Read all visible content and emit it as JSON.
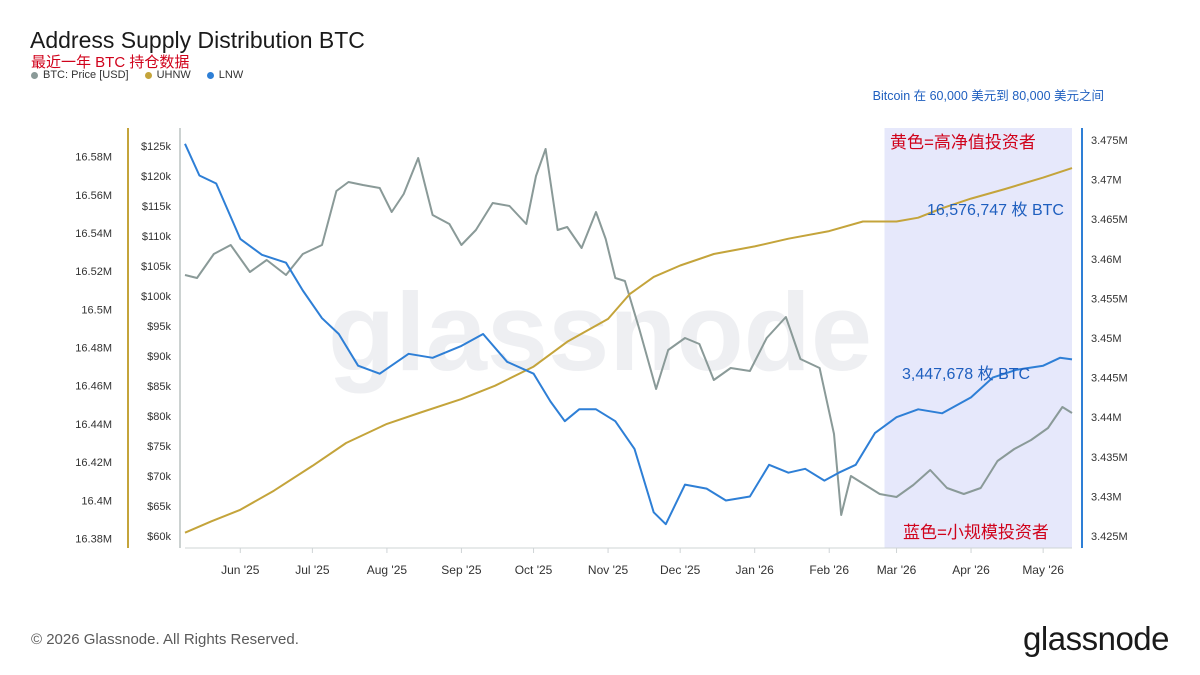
{
  "chart_data": {
    "type": "line",
    "title": "Address Supply Distribution BTC",
    "subtitle": "最近一年 BTC 持仓数据",
    "x_ticks": [
      "Jun '25",
      "Jul '25",
      "Aug '25",
      "Sep '25",
      "Oct '25",
      "Nov '25",
      "Dec '25",
      "Jan '26",
      "Feb '26",
      "Mar '26",
      "Apr '26",
      "May '26"
    ],
    "x_range": [
      "2025-05-09",
      "2026-05-13"
    ],
    "axes": {
      "uhnw": {
        "label": "UHNW",
        "range": [
          16.375,
          16.595
        ],
        "ticks": [
          "16.38M",
          "16.4M",
          "16.42M",
          "16.44M",
          "16.46M",
          "16.48M",
          "16.5M",
          "16.52M",
          "16.54M",
          "16.56M",
          "16.58M"
        ],
        "tick_values": [
          16.38,
          16.4,
          16.42,
          16.44,
          16.46,
          16.48,
          16.5,
          16.52,
          16.54,
          16.56,
          16.58
        ]
      },
      "price": {
        "label": "Price",
        "range": [
          58000,
          128000
        ],
        "ticks": [
          "$60k",
          "$65k",
          "$70k",
          "$75k",
          "$80k",
          "$85k",
          "$90k",
          "$95k",
          "$100k",
          "$105k",
          "$110k",
          "$115k",
          "$120k",
          "$125k"
        ],
        "tick_values": [
          60000,
          65000,
          70000,
          75000,
          80000,
          85000,
          90000,
          95000,
          100000,
          105000,
          110000,
          115000,
          120000,
          125000
        ]
      },
      "lnw": {
        "label": "LNW",
        "range": [
          3.4235,
          3.4765
        ],
        "ticks": [
          "3.425M",
          "3.43M",
          "3.435M",
          "3.44M",
          "3.445M",
          "3.45M",
          "3.455M",
          "3.46M",
          "3.465M",
          "3.47M",
          "3.475M"
        ],
        "tick_values": [
          3.425,
          3.43,
          3.435,
          3.44,
          3.445,
          3.45,
          3.455,
          3.46,
          3.465,
          3.47,
          3.475
        ]
      }
    },
    "series": [
      {
        "name": "BTC: Price [USD]",
        "axis": "price",
        "color": "#8a9a98",
        "points": [
          [
            "2025-05-09",
            103500
          ],
          [
            "2025-05-14",
            103000
          ],
          [
            "2025-05-21",
            107000
          ],
          [
            "2025-05-28",
            108500
          ],
          [
            "2025-06-05",
            104000
          ],
          [
            "2025-06-12",
            106000
          ],
          [
            "2025-06-20",
            103500
          ],
          [
            "2025-06-27",
            107000
          ],
          [
            "2025-07-05",
            108500
          ],
          [
            "2025-07-11",
            117500
          ],
          [
            "2025-07-16",
            119000
          ],
          [
            "2025-07-22",
            118500
          ],
          [
            "2025-07-29",
            118000
          ],
          [
            "2025-08-03",
            114000
          ],
          [
            "2025-08-08",
            117000
          ],
          [
            "2025-08-14",
            123000
          ],
          [
            "2025-08-20",
            113500
          ],
          [
            "2025-08-27",
            112000
          ],
          [
            "2025-09-01",
            108500
          ],
          [
            "2025-09-07",
            111000
          ],
          [
            "2025-09-14",
            115500
          ],
          [
            "2025-09-21",
            115000
          ],
          [
            "2025-09-28",
            112000
          ],
          [
            "2025-10-02",
            120000
          ],
          [
            "2025-10-06",
            124500
          ],
          [
            "2025-10-11",
            111000
          ],
          [
            "2025-10-15",
            111500
          ],
          [
            "2025-10-21",
            108000
          ],
          [
            "2025-10-27",
            114000
          ],
          [
            "2025-10-31",
            109500
          ],
          [
            "2025-11-04",
            103000
          ],
          [
            "2025-11-08",
            102500
          ],
          [
            "2025-11-14",
            94500
          ],
          [
            "2025-11-21",
            84500
          ],
          [
            "2025-11-26",
            91000
          ],
          [
            "2025-12-03",
            93000
          ],
          [
            "2025-12-09",
            92000
          ],
          [
            "2025-12-15",
            86000
          ],
          [
            "2025-12-22",
            88000
          ],
          [
            "2025-12-30",
            87500
          ],
          [
            "2026-01-06",
            93000
          ],
          [
            "2026-01-14",
            96500
          ],
          [
            "2026-01-20",
            89500
          ],
          [
            "2026-01-28",
            88000
          ],
          [
            "2026-02-03",
            77000
          ],
          [
            "2026-02-06",
            63500
          ],
          [
            "2026-02-10",
            70000
          ],
          [
            "2026-02-16",
            68500
          ],
          [
            "2026-02-22",
            67000
          ],
          [
            "2026-03-01",
            66500
          ],
          [
            "2026-03-08",
            68500
          ],
          [
            "2026-03-15",
            71000
          ],
          [
            "2026-03-22",
            68000
          ],
          [
            "2026-03-29",
            67000
          ],
          [
            "2026-04-05",
            68000
          ],
          [
            "2026-04-12",
            72500
          ],
          [
            "2026-04-19",
            74500
          ],
          [
            "2026-04-26",
            76000
          ],
          [
            "2026-05-03",
            78000
          ],
          [
            "2026-05-09",
            81500
          ],
          [
            "2026-05-13",
            80500
          ]
        ]
      },
      {
        "name": "UHNW",
        "axis": "uhnw",
        "color": "#c4a43b",
        "points": [
          [
            "2025-05-09",
            16.383
          ],
          [
            "2025-05-20",
            16.389
          ],
          [
            "2025-06-01",
            16.395
          ],
          [
            "2025-06-15",
            16.405
          ],
          [
            "2025-07-01",
            16.418
          ],
          [
            "2025-07-15",
            16.43
          ],
          [
            "2025-08-01",
            16.44
          ],
          [
            "2025-08-15",
            16.446
          ],
          [
            "2025-09-01",
            16.453
          ],
          [
            "2025-09-15",
            16.46
          ],
          [
            "2025-10-01",
            16.47
          ],
          [
            "2025-10-15",
            16.483
          ],
          [
            "2025-11-01",
            16.495
          ],
          [
            "2025-11-10",
            16.508
          ],
          [
            "2025-11-20",
            16.517
          ],
          [
            "2025-12-01",
            16.523
          ],
          [
            "2025-12-15",
            16.529
          ],
          [
            "2026-01-01",
            16.533
          ],
          [
            "2026-01-15",
            16.537
          ],
          [
            "2026-02-01",
            16.541
          ],
          [
            "2026-02-15",
            16.546
          ],
          [
            "2026-03-01",
            16.546
          ],
          [
            "2026-03-10",
            16.548
          ],
          [
            "2026-03-20",
            16.553
          ],
          [
            "2026-04-01",
            16.558
          ],
          [
            "2026-04-15",
            16.563
          ],
          [
            "2026-05-01",
            16.569
          ],
          [
            "2026-05-13",
            16.574
          ]
        ]
      },
      {
        "name": "LNW",
        "axis": "lnw",
        "color": "#2e7fd6",
        "points": [
          [
            "2025-05-09",
            3.4745
          ],
          [
            "2025-05-15",
            3.4705
          ],
          [
            "2025-05-22",
            3.4695
          ],
          [
            "2025-06-01",
            3.4625
          ],
          [
            "2025-06-10",
            3.4605
          ],
          [
            "2025-06-20",
            3.4595
          ],
          [
            "2025-06-27",
            3.456
          ],
          [
            "2025-07-05",
            3.4525
          ],
          [
            "2025-07-12",
            3.4505
          ],
          [
            "2025-07-20",
            3.4465
          ],
          [
            "2025-07-29",
            3.4455
          ],
          [
            "2025-08-10",
            3.448
          ],
          [
            "2025-08-20",
            3.4475
          ],
          [
            "2025-09-01",
            3.449
          ],
          [
            "2025-09-10",
            3.4505
          ],
          [
            "2025-09-20",
            3.447
          ],
          [
            "2025-10-01",
            3.4455
          ],
          [
            "2025-10-08",
            3.442
          ],
          [
            "2025-10-14",
            3.4395
          ],
          [
            "2025-10-20",
            3.441
          ],
          [
            "2025-10-27",
            3.441
          ],
          [
            "2025-11-04",
            3.4395
          ],
          [
            "2025-11-12",
            3.436
          ],
          [
            "2025-11-20",
            3.428
          ],
          [
            "2025-11-25",
            3.4265
          ],
          [
            "2025-12-03",
            3.4315
          ],
          [
            "2025-12-12",
            3.431
          ],
          [
            "2025-12-20",
            3.4295
          ],
          [
            "2025-12-30",
            3.43
          ],
          [
            "2026-01-07",
            3.434
          ],
          [
            "2026-01-15",
            3.433
          ],
          [
            "2026-01-22",
            3.4335
          ],
          [
            "2026-01-30",
            3.432
          ],
          [
            "2026-02-05",
            3.433
          ],
          [
            "2026-02-12",
            3.434
          ],
          [
            "2026-02-20",
            3.438
          ],
          [
            "2026-03-01",
            3.44
          ],
          [
            "2026-03-10",
            3.441
          ],
          [
            "2026-03-20",
            3.4405
          ],
          [
            "2026-04-01",
            3.4425
          ],
          [
            "2026-04-10",
            3.445
          ],
          [
            "2026-04-20",
            3.446
          ],
          [
            "2026-05-01",
            3.4465
          ],
          [
            "2026-05-08",
            3.4475
          ],
          [
            "2026-05-13",
            3.4473
          ]
        ]
      }
    ],
    "highlight": {
      "start": "2026-02-24",
      "end": "2026-05-13",
      "color": "#e6e8fb",
      "label": "Bitcoin 在 60,000 美元到 80,000 美元之间"
    },
    "annotations": [
      {
        "text": "黄色=高净值投资者",
        "color": "#d0021b"
      },
      {
        "text": "16,576,747 枚 BTC",
        "color": "#1f5fbf"
      },
      {
        "text": "3,447,678 枚 BTC",
        "color": "#1f5fbf"
      },
      {
        "text": "蓝色=小规模投资者",
        "color": "#d0021b"
      }
    ],
    "legend": [
      {
        "label": "BTC: Price [USD]",
        "color": "#8a9a98"
      },
      {
        "label": "UHNW",
        "color": "#c4a43b"
      },
      {
        "label": "LNW",
        "color": "#2e7fd6"
      }
    ],
    "watermark": "glassnode",
    "grid": false,
    "legend_position": "top-left"
  },
  "footer": {
    "copyright": "© 2026 Glassnode. All Rights Reserved.",
    "brand": "glassnode"
  }
}
